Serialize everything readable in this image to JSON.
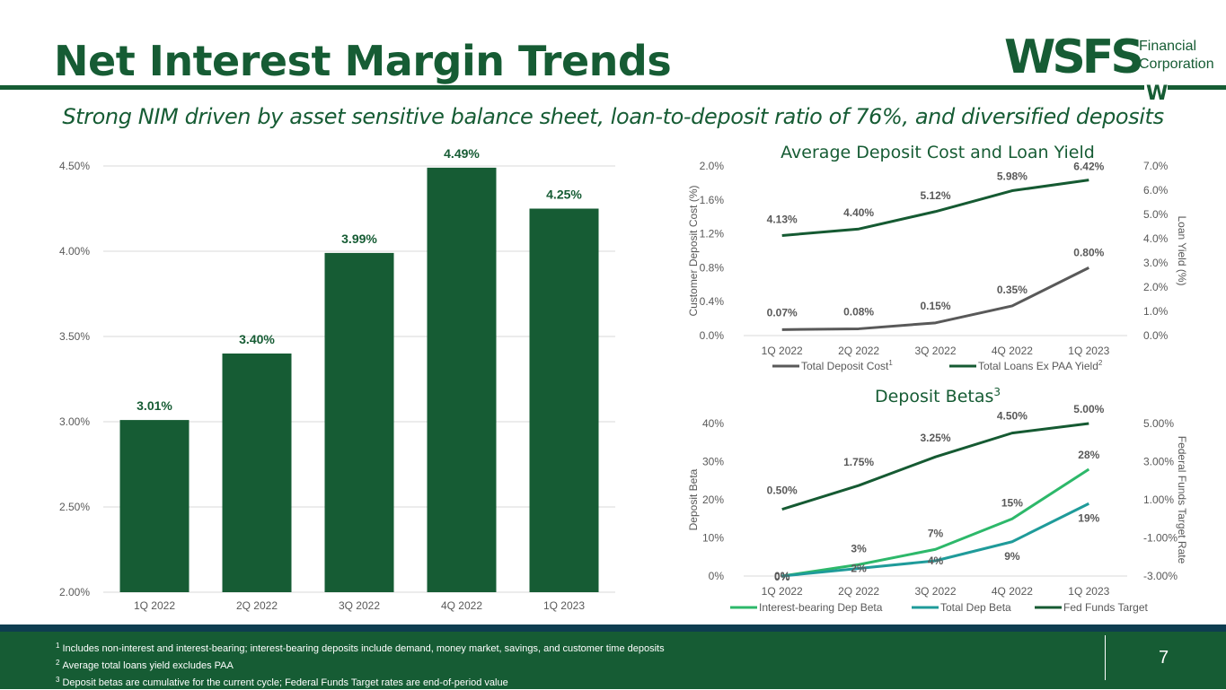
{
  "header": {
    "title": "Net Interest Margin Trends",
    "subtitle": "Strong NIM driven by asset sensitive balance sheet, loan-to-deposit ratio of 76%, and diversified deposits",
    "logo": {
      "main": "WSFS",
      "line1": "Financial",
      "line2": "Corporation",
      "mark": "W"
    }
  },
  "colors": {
    "brand_green": "#165c34",
    "dark_band": "#0e3d50",
    "deposit_cost": "#595959",
    "interest_beta": "#2db86a",
    "total_beta": "#1f9b9a",
    "fed_funds": "#155a32"
  },
  "chart_data": [
    {
      "id": "nim",
      "type": "bar",
      "title": "",
      "categories": [
        "1Q 2022",
        "2Q 2022",
        "3Q 2022",
        "4Q 2022",
        "1Q 2023"
      ],
      "values": [
        3.01,
        3.4,
        3.99,
        4.49,
        4.25
      ],
      "labels": [
        "3.01%",
        "3.40%",
        "3.99%",
        "4.49%",
        "4.25%"
      ],
      "ylim": [
        2.0,
        4.5
      ],
      "yticks": [
        "2.00%",
        "2.50%",
        "3.00%",
        "3.50%",
        "4.00%",
        "4.50%"
      ],
      "grid": true
    },
    {
      "id": "deposit_cost_loan_yield",
      "type": "line",
      "title": "Average Deposit Cost and Loan Yield",
      "categories": [
        "1Q 2022",
        "2Q 2022",
        "3Q 2022",
        "4Q 2022",
        "1Q 2023"
      ],
      "ylabel": "Customer Deposit Cost (%)",
      "y2label": "Loan Yield (%)",
      "ylim": [
        0,
        2.0
      ],
      "yticks": [
        "0.0%",
        "0.4%",
        "0.8%",
        "1.2%",
        "1.6%",
        "2.0%"
      ],
      "y2lim": [
        0,
        7.0
      ],
      "y2ticks": [
        "0.0%",
        "1.0%",
        "2.0%",
        "3.0%",
        "4.0%",
        "5.0%",
        "6.0%",
        "7.0%"
      ],
      "series": [
        {
          "name": "Total Deposit Cost",
          "sup": "1",
          "axis": "left",
          "values": [
            0.07,
            0.08,
            0.15,
            0.35,
            0.8
          ],
          "labels": [
            "0.07%",
            "0.08%",
            "0.15%",
            "0.35%",
            "0.80%"
          ]
        },
        {
          "name": "Total Loans Ex PAA Yield",
          "sup": "2",
          "axis": "right",
          "values": [
            4.13,
            4.4,
            5.12,
            5.98,
            6.42
          ],
          "labels": [
            "4.13%",
            "4.40%",
            "5.12%",
            "5.98%",
            "6.42%"
          ]
        }
      ],
      "legend": "bottom"
    },
    {
      "id": "deposit_betas",
      "type": "line",
      "title": "Deposit Betas",
      "title_sup": "3",
      "categories": [
        "1Q 2022",
        "2Q 2022",
        "3Q 2022",
        "4Q 2022",
        "1Q 2023"
      ],
      "ylabel": "Deposit Beta",
      "y2label": "Federal Funds Target Rate",
      "ylim": [
        0,
        40
      ],
      "yticks": [
        "0%",
        "10%",
        "20%",
        "30%",
        "40%"
      ],
      "y2lim": [
        -3.0,
        5.0
      ],
      "y2ticks": [
        "-3.00%",
        "-1.00%",
        "1.00%",
        "3.00%",
        "5.00%"
      ],
      "series": [
        {
          "name": "Interest-bearing Dep Beta",
          "axis": "left",
          "values": [
            0,
            3,
            7,
            15,
            28
          ],
          "labels": [
            "0%",
            "3%",
            "7%",
            "15%",
            "28%"
          ]
        },
        {
          "name": "Total Dep Beta",
          "axis": "left",
          "values": [
            0,
            2,
            4,
            9,
            19
          ],
          "labels": [
            "0%",
            "2%",
            "4%",
            "9%",
            "19%"
          ]
        },
        {
          "name": "Fed Funds Target",
          "axis": "right",
          "values": [
            0.5,
            1.75,
            3.25,
            4.5,
            5.0
          ],
          "labels": [
            "0.50%",
            "1.75%",
            "3.25%",
            "4.50%",
            "5.00%"
          ]
        }
      ],
      "legend": "bottom"
    }
  ],
  "footer": {
    "notes": [
      {
        "sup": "1",
        "text": "Includes non-interest and interest-bearing; interest-bearing deposits include demand, money market, savings, and customer time deposits"
      },
      {
        "sup": "2",
        "text": "Average total loans yield excludes PAA"
      },
      {
        "sup": "3",
        "text": "Deposit betas are cumulative for the current cycle; Federal Funds Target rates are end-of-period value"
      }
    ],
    "page_number": "7"
  }
}
